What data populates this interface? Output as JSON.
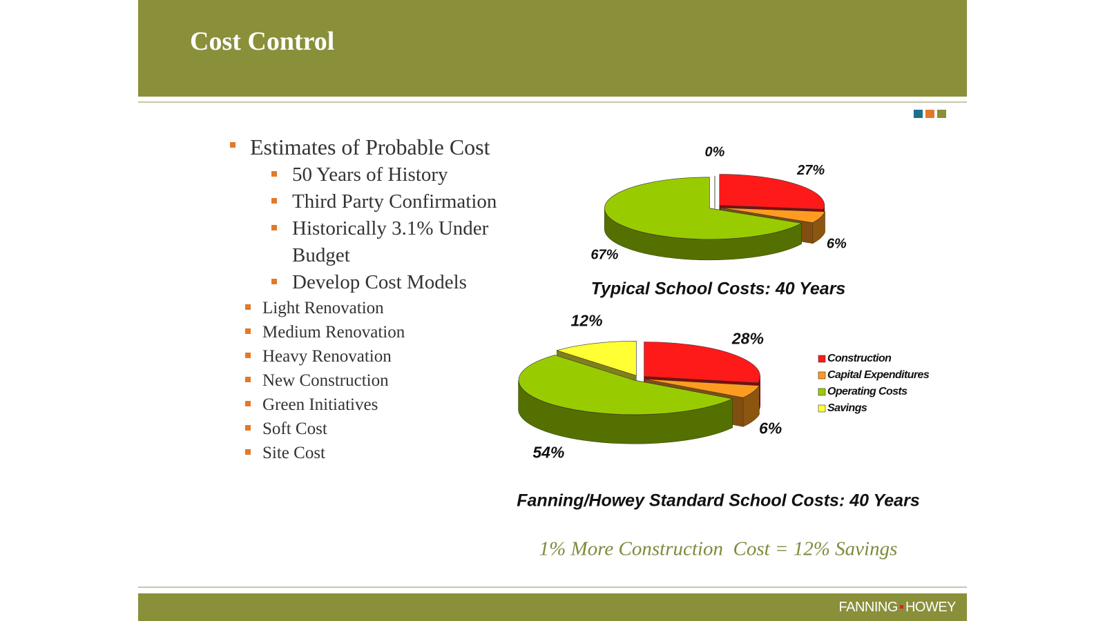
{
  "header": {
    "title": "Cost Control"
  },
  "bullets": {
    "text": "Estimates of Probable Cost",
    "items": [
      {
        "text": "50 Years of History"
      },
      {
        "text": "Third Party Confirmation"
      },
      {
        "text": "Historically 3.1% Under Budget"
      },
      {
        "text": "Develop Cost Models",
        "items": [
          "Light Renovation",
          "Medium Renovation",
          "Heavy Renovation",
          "New Construction",
          "Green Initiatives",
          "Soft Cost",
          "Site Cost"
        ]
      }
    ]
  },
  "chart_data": [
    {
      "type": "pie",
      "title": "Typical School Costs: 40 Years",
      "values": [
        27,
        6,
        67,
        0
      ],
      "value_labels": [
        "27%",
        "6%",
        "67%",
        "0%"
      ],
      "colors": [
        "#ff1a1a",
        "#ff9c1f",
        "#99cc00",
        "#ffff33"
      ]
    },
    {
      "type": "pie",
      "title": "Fanning/Howey Standard School Costs: 40 Years",
      "categories": [
        "Construction",
        "Capital Expenditures",
        "Operating Costs",
        "Savings"
      ],
      "values": [
        28,
        6,
        54,
        12
      ],
      "value_labels": [
        "28%",
        "6%",
        "54%",
        "12%"
      ],
      "colors": [
        "#ff1a1a",
        "#ff9c1f",
        "#99cc00",
        "#ffff33"
      ],
      "legend": "right"
    }
  ],
  "note": "1% More Construction  Cost = 12% Savings",
  "footer": {
    "logo": [
      "FANNING",
      "HOWEY"
    ]
  }
}
